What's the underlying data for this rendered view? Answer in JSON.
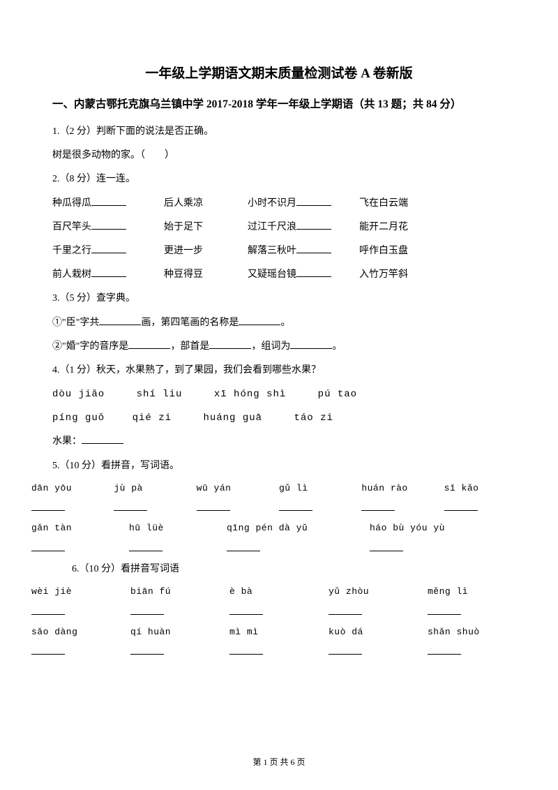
{
  "title": "一年级上学期语文期末质量检测试卷 A 卷新版",
  "section": "一、内蒙古鄂托克旗乌兰镇中学 2017-2018 学年一年级上学期语（共 13 题；共 84 分）",
  "q1": {
    "prompt": "1.（2 分）判断下面的说法是否正确。",
    "text": "树是很多动物的家。（　　）"
  },
  "q2": {
    "prompt": "2.（8 分）连一连。",
    "rows": [
      [
        "种瓜得瓜",
        "后人乘凉",
        "小时不识月",
        "飞在白云端"
      ],
      [
        "百尺竿头",
        "始于足下",
        "过江千尺浪",
        "能开二月花"
      ],
      [
        "千里之行",
        "更进一步",
        "解落三秋叶",
        "呼作白玉盘"
      ],
      [
        "前人栽树",
        "种豆得豆",
        "又疑瑶台镜",
        "入竹万竿斜"
      ]
    ]
  },
  "q3": {
    "prompt": "3.（5 分）查字典。",
    "l1a": "①\"臣\"字共",
    "l1b": "画，第四笔画的名称是",
    "l1c": "。",
    "l2a": "②\"婚\"字的音序是",
    "l2b": "，部首是",
    "l2c": "，组词为",
    "l2d": "。"
  },
  "q4": {
    "prompt": "4.（1 分）秋天，水果熟了，到了果园，我们会看到哪些水果？",
    "row1": [
      "dòu  jiǎo",
      "shí  liu",
      "xī  hóng  shì",
      "pú  tao"
    ],
    "row2": [
      "píng  guǒ",
      "qié  zi",
      "huáng  guā",
      "táo  zi"
    ],
    "label": "水果："
  },
  "q5": {
    "prompt": "5.（10 分）看拼音，写词语。",
    "row1": [
      "dān  yōu",
      "jù  pà",
      "wū  yán",
      "gǔ  lì",
      "huán  rào",
      "sī  kǎo"
    ],
    "row2": [
      "gǎn  tàn",
      "hū  lüè",
      "qīng  pén  dà  yǔ",
      "háo  bù  yóu  yù"
    ]
  },
  "q6": {
    "prompt": "6.（10 分）看拼音写词语",
    "row1": [
      "wèi  jiè",
      "biān  fú",
      "è  bà",
      "yǔ  zhòu",
      "měng  lì"
    ],
    "row2": [
      "sǎo  dàng",
      "qí  huàn",
      "mì  mì",
      "kuò  dá",
      "shǎn  shuò"
    ]
  },
  "footer": "第 1 页 共 6 页"
}
